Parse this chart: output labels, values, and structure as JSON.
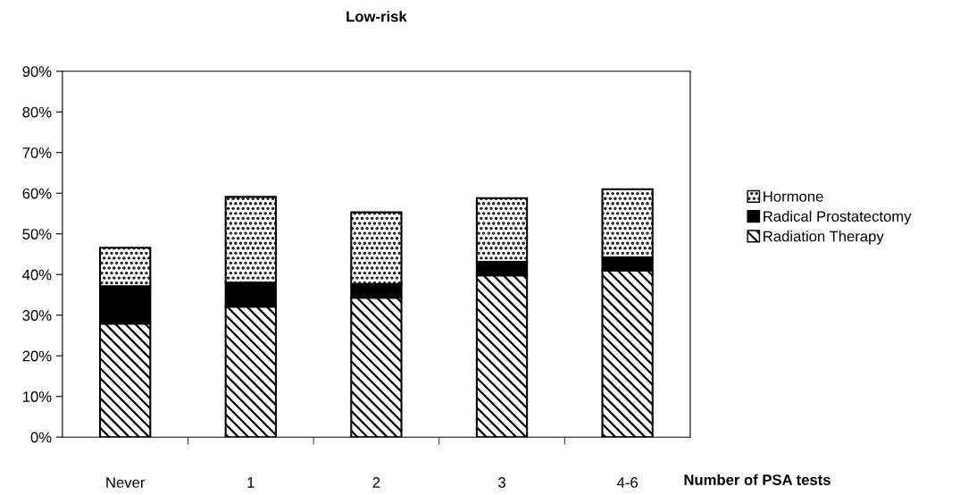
{
  "chart_data": {
    "type": "bar",
    "stacked": true,
    "title": "Low-risk",
    "annotations": [
      "Number of PSA tests"
    ],
    "categories": [
      "Never",
      "1",
      "2",
      "3",
      "4-6"
    ],
    "series": [
      {
        "name": "Radiation Therapy",
        "color": "#000000",
        "values": [
          27.9,
          32.1,
          34.3,
          39.8,
          41.0
        ]
      },
      {
        "name": "Radical Prostatectomy",
        "color": "#000000",
        "values": [
          9.2,
          5.9,
          3.4,
          3.3,
          3.2
        ]
      },
      {
        "name": "Hormone",
        "color": "#000000",
        "values": [
          9.5,
          21.1,
          17.6,
          15.7,
          16.8
        ]
      }
    ],
    "ylim": [
      0,
      90
    ],
    "yticks": [
      {
        "value": 0,
        "label": "0%"
      },
      {
        "value": 10,
        "label": "10%"
      },
      {
        "value": 20,
        "label": "20%"
      },
      {
        "value": 30,
        "label": "30%"
      },
      {
        "value": 40,
        "label": "40%"
      },
      {
        "value": 50,
        "label": "50%"
      },
      {
        "value": 60,
        "label": "60%"
      },
      {
        "value": 70,
        "label": "70%"
      },
      {
        "value": 80,
        "label": "80%"
      },
      {
        "value": 90,
        "label": "90%"
      }
    ],
    "grid": false,
    "legend": "right"
  }
}
